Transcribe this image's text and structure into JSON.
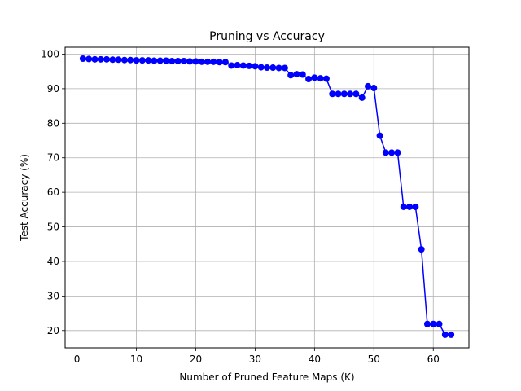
{
  "chart_data": {
    "type": "line",
    "title": "Pruning vs Accuracy",
    "xlabel": "Number of Pruned Feature Maps (K)",
    "ylabel": "Test Accuracy (%)",
    "xlim": [
      -2,
      66
    ],
    "ylim": [
      15,
      102
    ],
    "xticks": [
      0,
      10,
      20,
      30,
      40,
      50,
      60
    ],
    "yticks": [
      20,
      30,
      40,
      50,
      60,
      70,
      80,
      90,
      100
    ],
    "grid": true,
    "series": [
      {
        "color": "#0000ff",
        "marker": "circle",
        "x": [
          1,
          2,
          3,
          4,
          5,
          6,
          7,
          8,
          9,
          10,
          11,
          12,
          13,
          14,
          15,
          16,
          17,
          18,
          19,
          20,
          21,
          22,
          23,
          24,
          25,
          26,
          27,
          28,
          29,
          30,
          31,
          32,
          33,
          34,
          35,
          36,
          37,
          38,
          39,
          40,
          41,
          42,
          43,
          44,
          45,
          46,
          47,
          48,
          49,
          50,
          51,
          52,
          53,
          54,
          55,
          56,
          57,
          58,
          59,
          60,
          61,
          62,
          63
        ],
        "y": [
          98.7,
          98.6,
          98.5,
          98.5,
          98.5,
          98.4,
          98.4,
          98.3,
          98.3,
          98.2,
          98.2,
          98.2,
          98.1,
          98.1,
          98.1,
          98.0,
          98.0,
          98.0,
          97.9,
          97.9,
          97.8,
          97.8,
          97.8,
          97.7,
          97.7,
          96.7,
          96.8,
          96.7,
          96.6,
          96.5,
          96.2,
          96.1,
          96.1,
          96.0,
          96.0,
          93.9,
          94.2,
          94.1,
          92.8,
          93.2,
          93.0,
          92.9,
          88.5,
          88.5,
          88.5,
          88.5,
          88.5,
          87.4,
          90.7,
          90.2,
          76.4,
          71.5,
          71.5,
          71.5,
          55.8,
          55.8,
          55.8,
          43.5,
          21.9,
          21.9,
          21.9,
          18.8,
          18.8
        ]
      }
    ]
  }
}
